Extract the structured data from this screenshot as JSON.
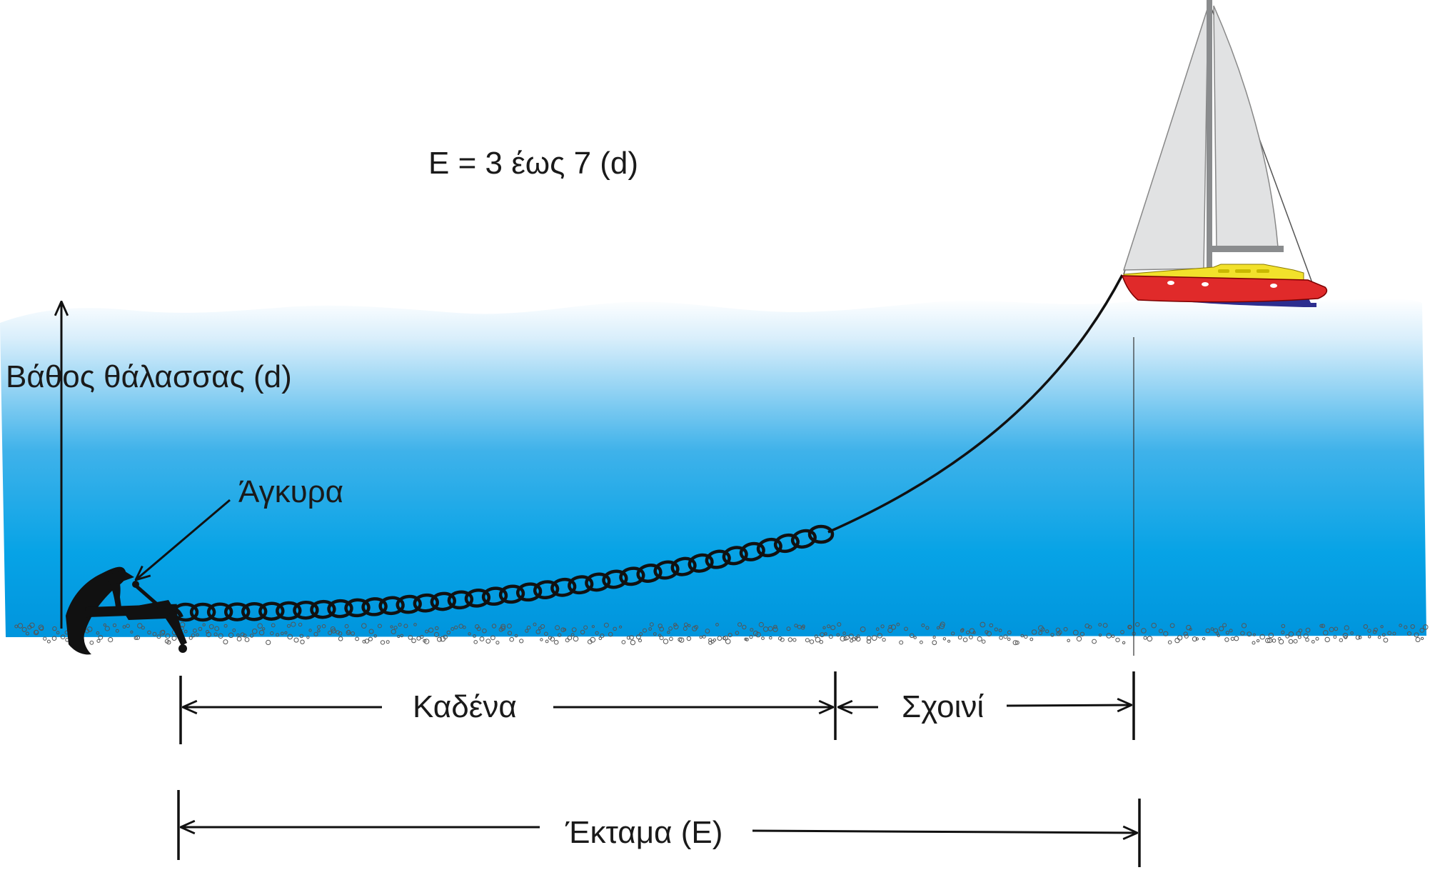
{
  "formula": "E = 3 έως 7 (d)",
  "labels": {
    "depth": "Βάθος θάλασσας (d)",
    "anchor": "Άγκυρα",
    "chain": "Καδένα",
    "rope": "Σχοινί",
    "scope": "Έκταμα (E)"
  },
  "colors": {
    "sea_top": "#ffffff",
    "sea_mid": "#3fb2ea",
    "sea_bottom": "#0095dd",
    "hull": "#e02a2a",
    "deck": "#f2e12b",
    "keel": "#2d2e8f",
    "sail": "#e1e2e3"
  }
}
